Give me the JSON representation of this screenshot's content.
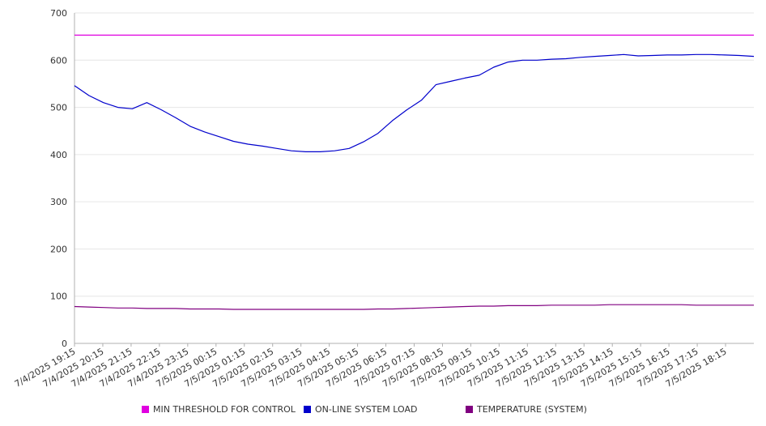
{
  "chart_data": {
    "type": "line",
    "title": "",
    "xlabel": "",
    "ylabel": "",
    "ylim": [
      0,
      700
    ],
    "yticks": [
      0,
      100,
      200,
      300,
      400,
      500,
      600,
      700
    ],
    "grid": true,
    "legend_position": "bottom",
    "x_tick_labels": [
      "7/4/2025 19:15",
      "7/4/2025 20:15",
      "7/4/2025 21:15",
      "7/4/2025 22:15",
      "7/4/2025 23:15",
      "7/5/2025 00:15",
      "7/5/2025 01:15",
      "7/5/2025 02:15",
      "7/5/2025 03:15",
      "7/5/2025 04:15",
      "7/5/2025 05:15",
      "7/5/2025 06:15",
      "7/5/2025 07:15",
      "7/5/2025 08:15",
      "7/5/2025 09:15",
      "7/5/2025 10:15",
      "7/5/2025 11:15",
      "7/5/2025 12:15",
      "7/5/2025 13:15",
      "7/5/2025 14:15",
      "7/5/2025 15:15",
      "7/5/2025 16:15",
      "7/5/2025 17:15",
      "7/5/2025 18:15"
    ],
    "x": [
      "7/4/2025 19:15",
      "7/4/2025 19:45",
      "7/4/2025 20:15",
      "7/4/2025 20:45",
      "7/4/2025 21:15",
      "7/4/2025 21:45",
      "7/4/2025 22:15",
      "7/4/2025 22:45",
      "7/4/2025 23:15",
      "7/4/2025 23:45",
      "7/5/2025 00:15",
      "7/5/2025 00:45",
      "7/5/2025 01:15",
      "7/5/2025 01:45",
      "7/5/2025 02:15",
      "7/5/2025 02:45",
      "7/5/2025 03:15",
      "7/5/2025 03:45",
      "7/5/2025 04:15",
      "7/5/2025 04:45",
      "7/5/2025 05:15",
      "7/5/2025 05:45",
      "7/5/2025 06:15",
      "7/5/2025 06:45",
      "7/5/2025 07:15",
      "7/5/2025 07:45",
      "7/5/2025 08:15",
      "7/5/2025 08:45",
      "7/5/2025 09:15",
      "7/5/2025 09:45",
      "7/5/2025 10:15",
      "7/5/2025 10:45",
      "7/5/2025 11:15",
      "7/5/2025 11:45",
      "7/5/2025 12:15",
      "7/5/2025 12:45",
      "7/5/2025 13:15",
      "7/5/2025 13:45",
      "7/5/2025 14:15",
      "7/5/2025 14:45",
      "7/5/2025 15:15",
      "7/5/2025 15:45",
      "7/5/2025 16:15",
      "7/5/2025 16:45",
      "7/5/2025 17:15",
      "7/5/2025 17:45",
      "7/5/2025 18:15",
      "7/5/2025 18:45"
    ],
    "series": [
      {
        "name": "MIN THRESHOLD FOR CONTROL",
        "color": "#e000e0",
        "values": [
          653,
          653,
          653,
          653,
          653,
          653,
          653,
          653,
          653,
          653,
          653,
          653,
          653,
          653,
          653,
          653,
          653,
          653,
          653,
          653,
          653,
          653,
          653,
          653,
          653,
          653,
          653,
          653,
          653,
          653,
          653,
          653,
          653,
          653,
          653,
          653,
          653,
          653,
          653,
          653,
          653,
          653,
          653,
          653,
          653,
          653,
          653,
          653
        ]
      },
      {
        "name": "ON-LINE SYSTEM LOAD",
        "color": "#0000cc",
        "values": [
          546,
          525,
          510,
          500,
          497,
          510,
          495,
          478,
          460,
          448,
          438,
          428,
          422,
          418,
          413,
          408,
          406,
          406,
          408,
          413,
          427,
          445,
          472,
          495,
          515,
          548,
          555,
          562,
          568,
          585,
          596,
          600,
          600,
          602,
          603,
          606,
          608,
          610,
          612,
          609,
          610,
          611,
          611,
          612,
          612,
          611,
          610,
          608
        ]
      },
      {
        "name": "TEMPERATURE (SYSTEM)",
        "color": "#800080",
        "values": [
          78,
          77,
          76,
          75,
          75,
          74,
          74,
          74,
          73,
          73,
          73,
          72,
          72,
          72,
          72,
          72,
          72,
          72,
          72,
          72,
          72,
          73,
          73,
          74,
          75,
          76,
          77,
          78,
          79,
          79,
          80,
          80,
          80,
          81,
          81,
          81,
          81,
          82,
          82,
          82,
          82,
          82,
          82,
          81,
          81,
          81,
          81,
          81
        ]
      }
    ]
  }
}
